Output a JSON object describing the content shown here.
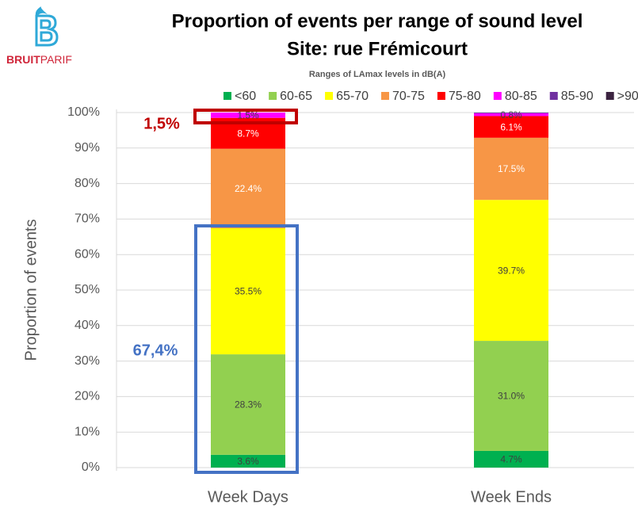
{
  "logo": {
    "bold": "BRUIT",
    "regular": "PARIF"
  },
  "chart_data": {
    "type": "stacked_bar",
    "title": [
      "Proportion of events per range of sound level",
      "Site: rue Frémicourt"
    ],
    "legend_title": "Ranges of LAmax levels in dB(A)",
    "y_label": "Proportion of events",
    "categories": [
      "Week Days",
      "Week Ends"
    ],
    "series": [
      {
        "name": "<60",
        "color": "#00b050",
        "values": [
          3.6,
          4.7
        ],
        "value_labels": [
          "3.6%",
          "4.7%"
        ]
      },
      {
        "name": "60-65",
        "color": "#92d050",
        "values": [
          28.3,
          31.0
        ],
        "value_labels": [
          "28.3%",
          "31.0%"
        ]
      },
      {
        "name": "65-70",
        "color": "#ffff00",
        "values": [
          35.5,
          39.7
        ],
        "value_labels": [
          "35.5%",
          "39.7%"
        ]
      },
      {
        "name": "70-75",
        "color": "#f79646",
        "values": [
          22.4,
          17.5
        ],
        "value_labels": [
          "22.4%",
          "17.5%"
        ]
      },
      {
        "name": "75-80",
        "color": "#ff0000",
        "values": [
          8.7,
          6.1
        ],
        "value_labels": [
          "8.7%",
          "6.1%"
        ]
      },
      {
        "name": "80-85",
        "color": "#ff00ff",
        "values": [
          1.5,
          0.8
        ],
        "value_labels": [
          "1.5%",
          "0.8%"
        ]
      },
      {
        "name": "85-90",
        "color": "#7030a0",
        "values": [
          0,
          0.2
        ],
        "value_labels": [
          null,
          null
        ]
      },
      {
        "name": ">90",
        "color": "#3b2340",
        "values": [
          0,
          0
        ],
        "value_labels": [
          null,
          null
        ]
      }
    ],
    "ylim": [
      0,
      100
    ],
    "yticks": [
      {
        "value": 0,
        "label": "0%"
      },
      {
        "value": 10,
        "label": "10%"
      },
      {
        "value": 20,
        "label": "20%"
      },
      {
        "value": 30,
        "label": "30%"
      },
      {
        "value": 40,
        "label": "40%"
      },
      {
        "value": 50,
        "label": "50%"
      },
      {
        "value": 60,
        "label": "60%"
      },
      {
        "value": 70,
        "label": "70%"
      },
      {
        "value": 80,
        "label": "80%"
      },
      {
        "value": 90,
        "label": "90%"
      },
      {
        "value": 100,
        "label": "100%"
      }
    ],
    "grid": true,
    "annotations": [
      {
        "text": "1,5%",
        "color": "#c00000"
      },
      {
        "text": "67,4%",
        "color": "#4472c4"
      }
    ]
  }
}
